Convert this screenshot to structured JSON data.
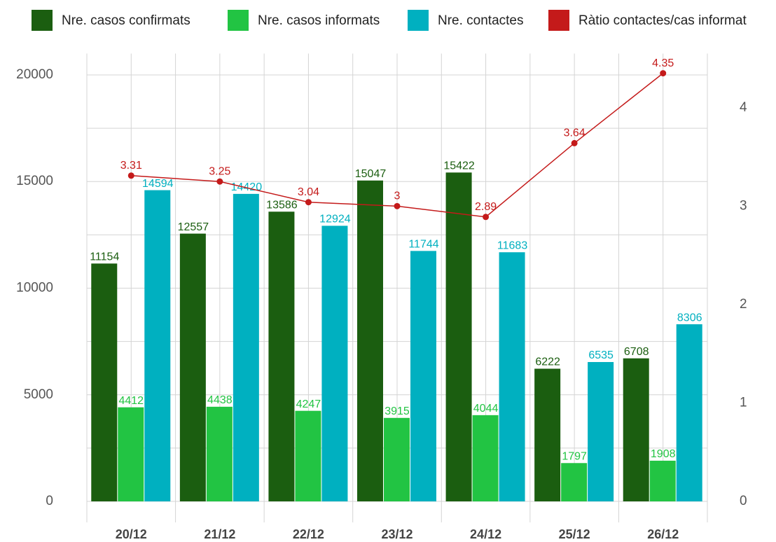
{
  "chart_data": {
    "type": "bar",
    "categories": [
      "20/12",
      "21/12",
      "22/12",
      "23/12",
      "24/12",
      "25/12",
      "26/12"
    ],
    "series": [
      {
        "name": "Nre. casos confirmats",
        "color": "#1b5e10",
        "values": [
          11154,
          12557,
          13586,
          15047,
          15422,
          6222,
          6708
        ]
      },
      {
        "name": "Nre. casos informats",
        "color": "#22c443",
        "values": [
          4412,
          4438,
          4247,
          3915,
          4044,
          1797,
          1908
        ]
      },
      {
        "name": "Nre. contactes",
        "color": "#00b0c0",
        "values": [
          14594,
          14420,
          12924,
          11744,
          11683,
          6535,
          8306
        ]
      },
      {
        "name": "Ràtio contactes/cas informat",
        "color": "#c41a1a",
        "type": "line",
        "axis": "y2",
        "values": [
          3.31,
          3.25,
          3.04,
          3,
          2.89,
          3.64,
          4.35
        ]
      }
    ],
    "ylim": [
      0,
      21000
    ],
    "yticks": [
      0,
      5000,
      10000,
      15000,
      20000
    ],
    "y_minor_ticks": [
      2500,
      7500,
      12500,
      17500
    ],
    "y2lim": [
      0,
      4.55
    ],
    "y2ticks": [
      0,
      1,
      2,
      3,
      4
    ],
    "grid": true,
    "legend": "top"
  }
}
